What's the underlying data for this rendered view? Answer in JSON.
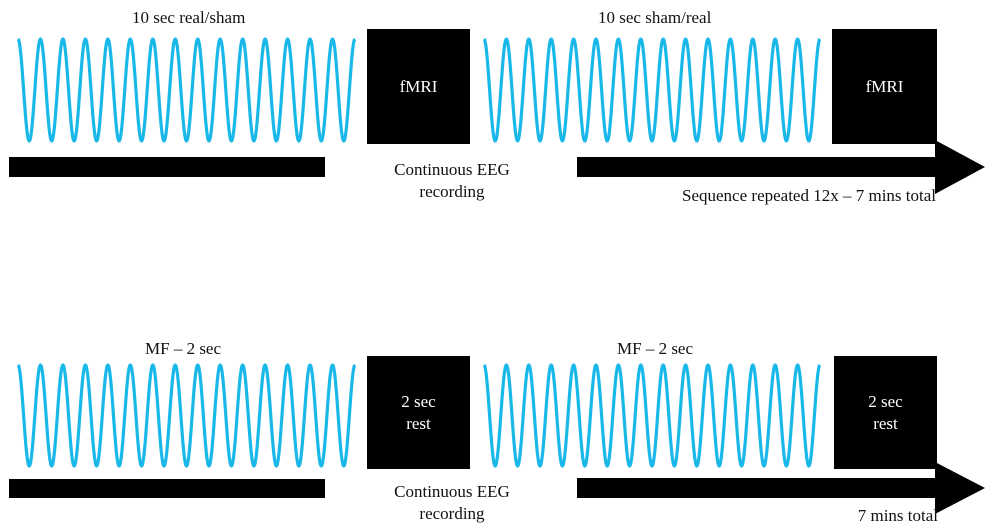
{
  "colors": {
    "wave": "#1ab8e8",
    "block": "#000000",
    "text": "#111111",
    "block_text": "#ffffff"
  },
  "top": {
    "label_left": "10 sec real/sham",
    "label_right": "10 sec sham/real",
    "box_left": "fMRI",
    "box_right": "fMRI",
    "eeg_line1": "Continuous EEG",
    "eeg_line2": "recording",
    "note": "Sequence repeated 12x – 7 mins total"
  },
  "bottom": {
    "label_left": "MF – 2 sec",
    "label_right": "MF – 2 sec",
    "box_left": "2 sec\nrest",
    "box_right": "2 sec\nrest",
    "eeg_line1": "Continuous EEG",
    "eeg_line2": "recording",
    "note": "7 mins total"
  }
}
